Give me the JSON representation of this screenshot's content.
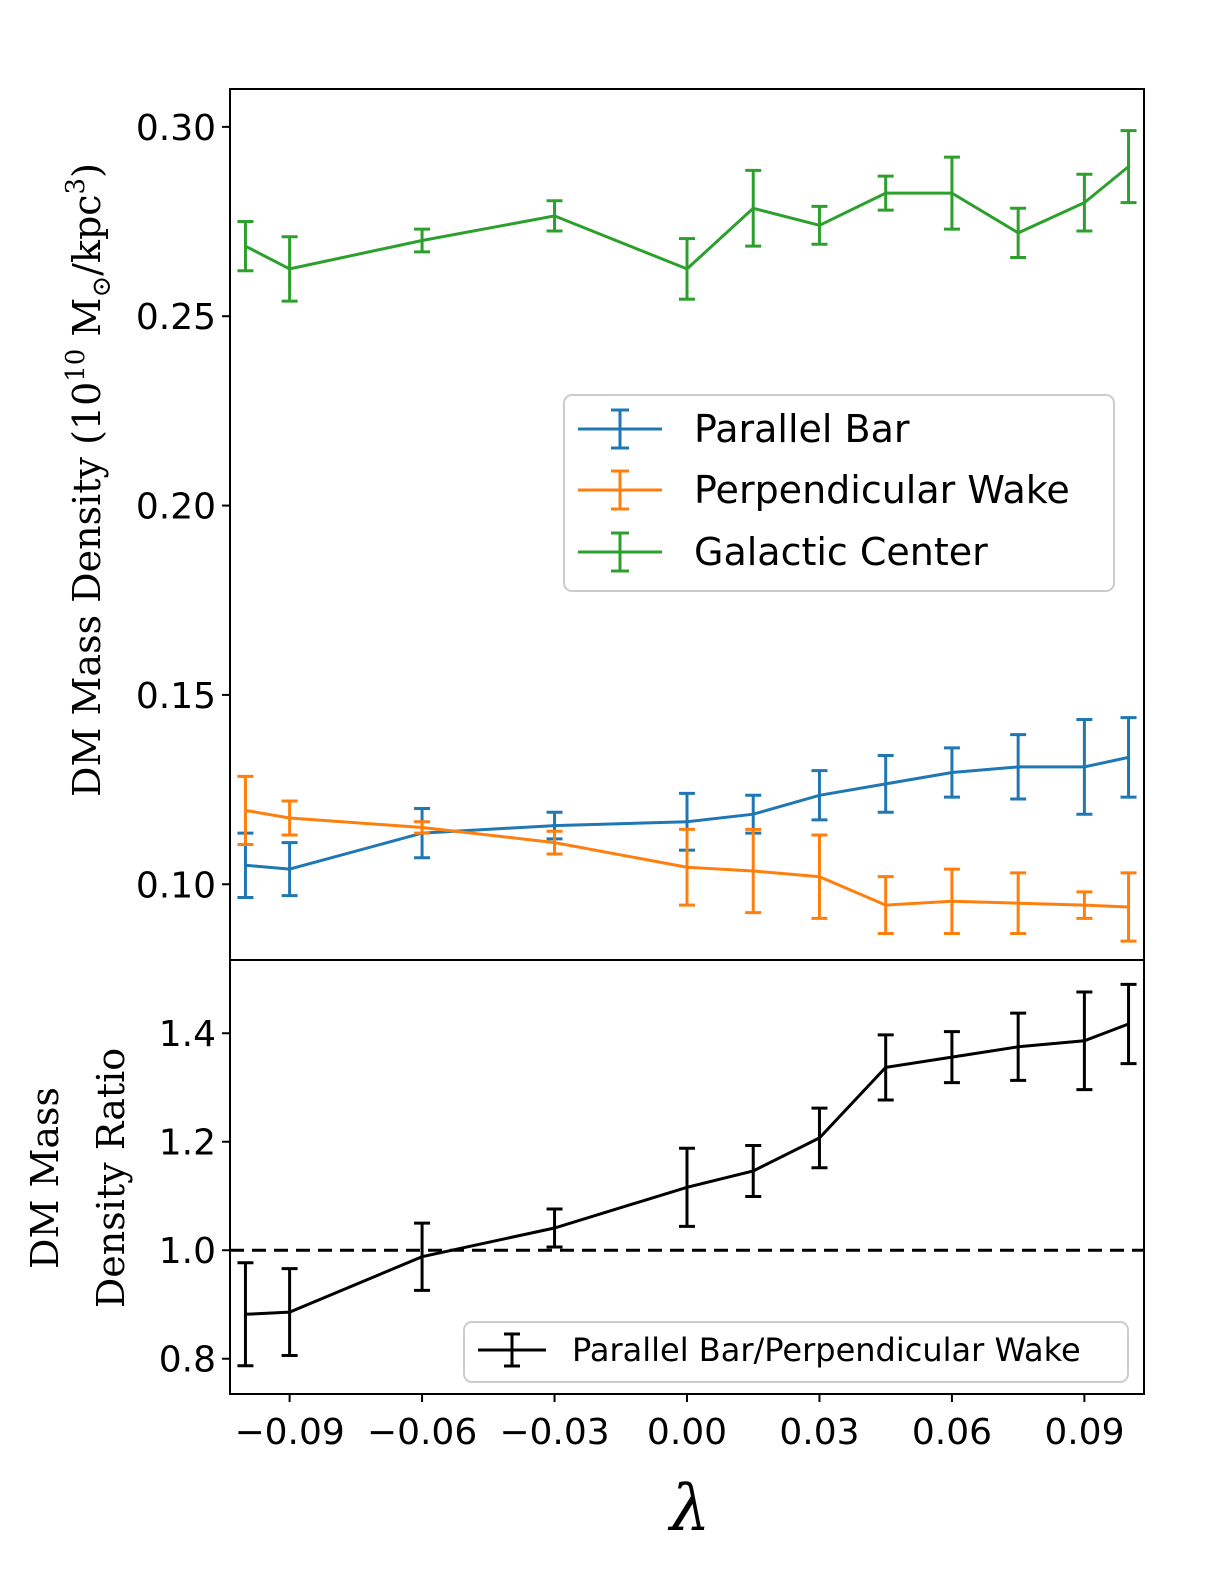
{
  "chart_data": [
    {
      "type": "line",
      "panel": "top",
      "ylabel": "DM Mass Density (10",
      "ylabel_exp1": "10",
      "ylabel_unit": "M",
      "ylabel_sun": "⊙",
      "ylabel_tail": "/kpc",
      "ylabel_exp2": "3",
      "ylabel_close": ")",
      "ylim": [
        0.08,
        0.31
      ],
      "yticks": [
        "0.10",
        "0.15",
        "0.20",
        "0.25",
        "0.30"
      ],
      "ytick_values": [
        0.1,
        0.15,
        0.2,
        0.25,
        0.3
      ],
      "x": [
        -0.1,
        -0.09,
        -0.06,
        -0.03,
        0.0,
        0.015,
        0.03,
        0.045,
        0.06,
        0.075,
        0.09,
        0.1
      ],
      "legend_position": "center-right",
      "series": [
        {
          "name": "Parallel Bar",
          "color": "#1f77b4",
          "values": [
            0.105,
            0.104,
            0.1135,
            0.1155,
            0.1165,
            0.1185,
            0.1235,
            0.1265,
            0.1295,
            0.131,
            0.131,
            0.1335
          ],
          "errors": [
            0.0085,
            0.007,
            0.0065,
            0.0035,
            0.0075,
            0.005,
            0.0065,
            0.0075,
            0.0065,
            0.0085,
            0.0125,
            0.0105
          ]
        },
        {
          "name": "Perpendicular Wake",
          "color": "#ff7f0e",
          "values": [
            0.1195,
            0.1175,
            0.115,
            0.111,
            0.1045,
            0.1035,
            0.102,
            0.0945,
            0.0955,
            0.095,
            0.0945,
            0.094
          ],
          "errors": [
            0.009,
            0.0045,
            0.0015,
            0.003,
            0.01,
            0.011,
            0.011,
            0.0075,
            0.0085,
            0.008,
            0.0035,
            0.009
          ]
        },
        {
          "name": "Galactic Center",
          "color": "#2ca02c",
          "values": [
            0.2685,
            0.2625,
            0.27,
            0.2765,
            0.2625,
            0.2785,
            0.274,
            0.2825,
            0.2825,
            0.272,
            0.28,
            0.2895
          ],
          "errors": [
            0.0065,
            0.0085,
            0.003,
            0.004,
            0.008,
            0.01,
            0.005,
            0.0045,
            0.0095,
            0.0065,
            0.0075,
            0.0095
          ]
        }
      ]
    },
    {
      "type": "line",
      "panel": "bottom",
      "ylabel_line1": "DM Mass",
      "ylabel_line2": "Density Ratio",
      "xlabel": "λ",
      "xlim": [
        -0.1035,
        0.1035
      ],
      "ylim": [
        0.735,
        1.535
      ],
      "yticks": [
        "0.8",
        "1.0",
        "1.2",
        "1.4"
      ],
      "ytick_values": [
        0.8,
        1.0,
        1.2,
        1.4
      ],
      "xticks": [
        "−0.09",
        "−0.06",
        "−0.03",
        "0.00",
        "0.03",
        "0.06",
        "0.09"
      ],
      "xtick_values": [
        -0.09,
        -0.06,
        -0.03,
        0.0,
        0.03,
        0.06,
        0.09
      ],
      "reference_line": 1.0,
      "legend_position": "lower-right",
      "x": [
        -0.1,
        -0.09,
        -0.06,
        -0.03,
        0.0,
        0.015,
        0.03,
        0.045,
        0.06,
        0.075,
        0.09,
        0.1
      ],
      "series": [
        {
          "name": "Parallel Bar/Perpendicular Wake",
          "color": "#000000",
          "values": [
            0.882,
            0.886,
            0.988,
            1.041,
            1.116,
            1.146,
            1.207,
            1.337,
            1.356,
            1.375,
            1.386,
            1.417
          ],
          "errors": [
            0.095,
            0.08,
            0.062,
            0.035,
            0.072,
            0.047,
            0.055,
            0.06,
            0.047,
            0.062,
            0.09,
            0.073
          ]
        }
      ]
    }
  ]
}
